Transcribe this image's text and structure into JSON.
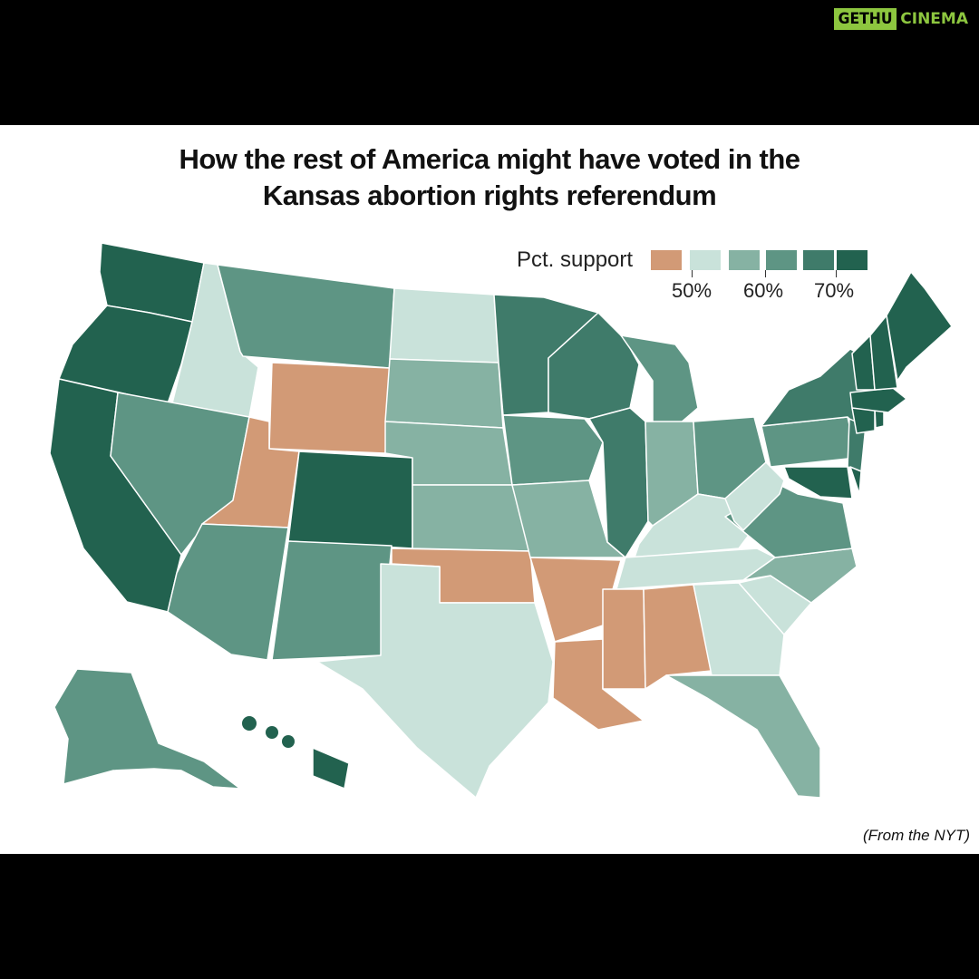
{
  "logo": {
    "part1": "GETHU",
    "part2": "CINEMA"
  },
  "title_lines": [
    "How the rest of America might have voted in the",
    "Kansas abortion rights referendum"
  ],
  "legend": {
    "label": "Pct. support",
    "ticks": [
      "50%",
      "60%",
      "70%"
    ],
    "colors": [
      "#d29a76",
      "#c9e2da",
      "#86b2a3",
      "#5e9584",
      "#3f7b6a",
      "#22624f"
    ]
  },
  "source": "(From the NYT)",
  "chart_data": {
    "type": "choropleth",
    "title": "How the rest of America might have voted in the Kansas abortion rights referendum",
    "legend_label": "Pct. support",
    "legend_ticks": [
      "50%",
      "60%",
      "70%"
    ],
    "bins": [
      "below 50%",
      "50–55%",
      "55–60%",
      "60–65%",
      "65–70%",
      "70%+"
    ],
    "states": {
      "WA": 5,
      "OR": 5,
      "CA": 5,
      "CO": 5,
      "HI": 5,
      "MD": 5,
      "VT": 5,
      "NH": 5,
      "ME": 5,
      "MA": 5,
      "CT": 5,
      "RI": 5,
      "DE": 5,
      "MN": 4,
      "WI": 4,
      "IL": 4,
      "NY": 4,
      "NJ": 4,
      "MT": 3,
      "NV": 3,
      "AZ": 3,
      "NM": 3,
      "MI": 3,
      "OH": 3,
      "PA": 3,
      "VA": 3,
      "IA": 3,
      "AK": 3,
      "SD": 2,
      "NE": 2,
      "KS": 2,
      "MO": 2,
      "IN": 2,
      "NC": 2,
      "FL": 2,
      "ID": 1,
      "ND": 1,
      "TX": 1,
      "KY": 1,
      "TN": 1,
      "WV": 1,
      "GA": 1,
      "SC": 1,
      "WY": 0,
      "UT": 0,
      "OK": 0,
      "AR": 0,
      "LA": 0,
      "MS": 0,
      "AL": 0
    }
  }
}
